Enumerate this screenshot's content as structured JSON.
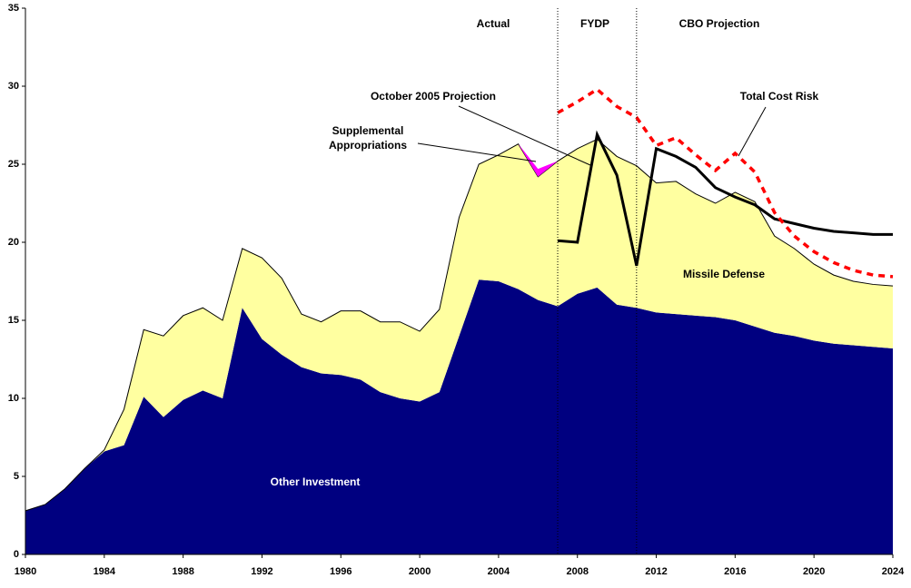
{
  "chart_data": {
    "type": "stacked_area",
    "x": [
      1980,
      1981,
      1982,
      1983,
      1984,
      1985,
      1986,
      1987,
      1988,
      1989,
      1990,
      1991,
      1992,
      1993,
      1994,
      1995,
      1996,
      1997,
      1998,
      1999,
      2000,
      2001,
      2002,
      2003,
      2004,
      2005,
      2006,
      2007,
      2008,
      2009,
      2010,
      2011,
      2012,
      2013,
      2014,
      2015,
      2016,
      2017,
      2018,
      2019,
      2020,
      2021,
      2022,
      2023,
      2024
    ],
    "series": [
      {
        "name": "Other Investment",
        "color": "#000080",
        "values": [
          2.8,
          3.2,
          4.2,
          5.5,
          6.6,
          7.0,
          10.1,
          8.8,
          9.9,
          10.5,
          10.0,
          15.8,
          13.8,
          12.8,
          12.0,
          11.6,
          11.5,
          11.2,
          10.4,
          10.0,
          9.8,
          10.4,
          14.0,
          17.6,
          17.5,
          17.0,
          16.3,
          15.9,
          16.7,
          17.1,
          16.0,
          15.8,
          15.5,
          15.4,
          15.3,
          15.2,
          15.0,
          14.6,
          14.2,
          14.0,
          13.7,
          13.5,
          13.4,
          13.3,
          13.2
        ]
      },
      {
        "name": "Missile Defense",
        "color": "#ffffa0",
        "values": [
          0,
          0,
          0,
          0,
          0.1,
          2.3,
          4.3,
          5.2,
          5.4,
          5.3,
          5.0,
          3.8,
          5.2,
          4.9,
          3.4,
          3.3,
          4.1,
          4.4,
          4.5,
          4.9,
          4.5,
          5.3,
          7.6,
          7.4,
          8.1,
          9.3,
          7.9,
          9.3,
          9.3,
          9.5,
          9.5,
          9.1,
          8.3,
          8.5,
          7.8,
          7.3,
          8.2,
          8.0,
          6.2,
          5.6,
          4.9,
          4.4,
          4.1,
          4.0,
          4.0
        ]
      },
      {
        "name": "Supplemental Appropriations",
        "color": "#ff00ff",
        "values": [
          null,
          null,
          null,
          null,
          null,
          null,
          null,
          null,
          null,
          null,
          null,
          null,
          null,
          null,
          null,
          null,
          null,
          null,
          null,
          null,
          null,
          null,
          null,
          null,
          null,
          0,
          0.5,
          0,
          null,
          null,
          null,
          null,
          null,
          null,
          null,
          null,
          null,
          null,
          null,
          null,
          null,
          null,
          null,
          null,
          null
        ]
      }
    ],
    "lines": [
      {
        "name": "October 2005 Projection",
        "color": "#000000",
        "style": "solid",
        "values": [
          null,
          null,
          null,
          null,
          null,
          null,
          null,
          null,
          null,
          null,
          null,
          null,
          null,
          null,
          null,
          null,
          null,
          null,
          null,
          null,
          null,
          null,
          null,
          null,
          null,
          null,
          null,
          20.1,
          20.0,
          26.9,
          24.3,
          18.5,
          26.0,
          25.5,
          24.8,
          23.5,
          22.9,
          22.4,
          21.5,
          21.2,
          20.9,
          20.7,
          20.6,
          20.5,
          20.5
        ]
      },
      {
        "name": "Total Cost Risk",
        "color": "#ff0000",
        "style": "dashed",
        "values": [
          null,
          null,
          null,
          null,
          null,
          null,
          null,
          null,
          null,
          null,
          null,
          null,
          null,
          null,
          null,
          null,
          null,
          null,
          null,
          null,
          null,
          null,
          null,
          null,
          null,
          null,
          null,
          28.3,
          29.0,
          29.8,
          28.7,
          28.0,
          26.2,
          26.7,
          25.6,
          24.6,
          25.7,
          24.5,
          21.9,
          20.4,
          19.4,
          18.7,
          18.2,
          17.9,
          17.8
        ]
      }
    ],
    "periods": [
      "Actual",
      "FYDP",
      "CBO Projection"
    ],
    "dividers": [
      2007,
      2011
    ],
    "xlim": [
      1980,
      2024
    ],
    "xticks": [
      1980,
      1984,
      1988,
      1992,
      1996,
      2000,
      2004,
      2008,
      2012,
      2016,
      2020,
      2024
    ],
    "ylim": [
      0,
      35
    ],
    "yticks": [
      0,
      5,
      10,
      15,
      20,
      25,
      30,
      35
    ]
  }
}
